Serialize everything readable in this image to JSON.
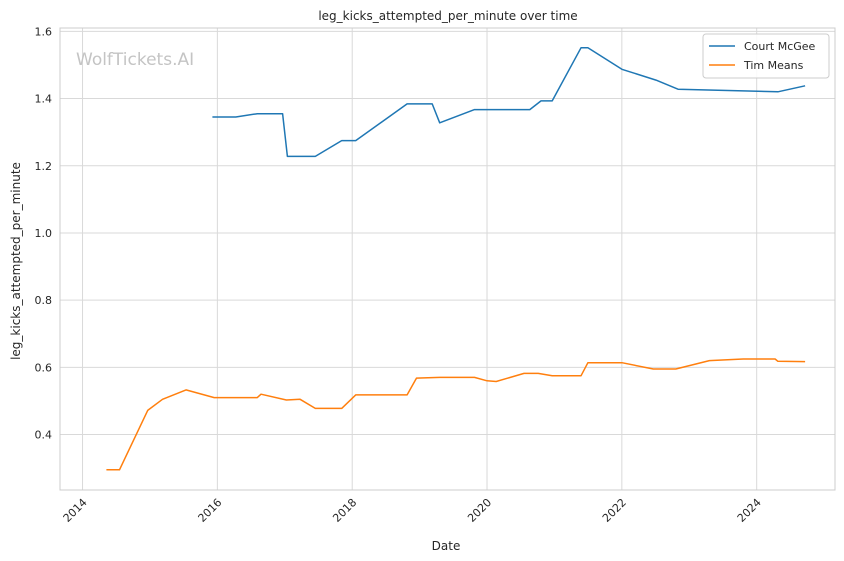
{
  "chart_data": {
    "type": "line",
    "title": "leg_kicks_attempted_per_minute over time",
    "xlabel": "Date",
    "ylabel": "leg_kicks_attempted_per_minute",
    "watermark": "WolfTickets.AI",
    "xlim": [
      "2013-09-01",
      "2025-03-01"
    ],
    "ylim": [
      0.235,
      1.61
    ],
    "x_ticks": [
      "2014",
      "2016",
      "2018",
      "2020",
      "2022",
      "2024"
    ],
    "y_ticks": [
      "0.4",
      "0.6",
      "0.8",
      "1.0",
      "1.2",
      "1.4",
      "1.6"
    ],
    "grid": true,
    "legend_position": "top-right",
    "series": [
      {
        "name": "Court McGee",
        "color": "#1f77b4",
        "points": [
          [
            "2015-12-05",
            1.345
          ],
          [
            "2016-04-10",
            1.345
          ],
          [
            "2016-08-05",
            1.355
          ],
          [
            "2016-12-20",
            1.355
          ],
          [
            "2017-01-15",
            1.228
          ],
          [
            "2017-06-15",
            1.228
          ],
          [
            "2017-11-05",
            1.275
          ],
          [
            "2018-01-20",
            1.275
          ],
          [
            "2018-10-25",
            1.384
          ],
          [
            "2019-03-10",
            1.384
          ],
          [
            "2019-04-20",
            1.328
          ],
          [
            "2019-10-25",
            1.367
          ],
          [
            "2020-08-20",
            1.367
          ],
          [
            "2020-10-20",
            1.393
          ],
          [
            "2020-12-20",
            1.393
          ],
          [
            "2021-05-25",
            1.551
          ],
          [
            "2021-07-01",
            1.551
          ],
          [
            "2022-01-01",
            1.487
          ],
          [
            "2022-07-05",
            1.455
          ],
          [
            "2022-11-01",
            1.428
          ],
          [
            "2024-04-25",
            1.42
          ],
          [
            "2024-09-20",
            1.438
          ]
        ]
      },
      {
        "name": "Tim Means",
        "color": "#ff7f0e",
        "points": [
          [
            "2014-05-10",
            0.295
          ],
          [
            "2014-07-20",
            0.295
          ],
          [
            "2014-12-20",
            0.472
          ],
          [
            "2015-03-10",
            0.505
          ],
          [
            "2015-07-15",
            0.533
          ],
          [
            "2015-12-15",
            0.51
          ],
          [
            "2016-08-05",
            0.51
          ],
          [
            "2016-08-25",
            0.52
          ],
          [
            "2017-01-10",
            0.503
          ],
          [
            "2017-03-25",
            0.505
          ],
          [
            "2017-06-15",
            0.478
          ],
          [
            "2017-11-05",
            0.478
          ],
          [
            "2018-01-20",
            0.518
          ],
          [
            "2018-10-25",
            0.518
          ],
          [
            "2018-12-15",
            0.568
          ],
          [
            "2019-04-20",
            0.57
          ],
          [
            "2019-10-25",
            0.57
          ],
          [
            "2020-01-01",
            0.56
          ],
          [
            "2020-02-20",
            0.558
          ],
          [
            "2020-07-20",
            0.582
          ],
          [
            "2020-10-05",
            0.582
          ],
          [
            "2020-12-20",
            0.575
          ],
          [
            "2021-05-25",
            0.575
          ],
          [
            "2021-07-01",
            0.614
          ],
          [
            "2022-01-01",
            0.614
          ],
          [
            "2022-06-20",
            0.595
          ],
          [
            "2022-10-20",
            0.595
          ],
          [
            "2023-04-20",
            0.62
          ],
          [
            "2023-10-20",
            0.625
          ],
          [
            "2024-04-10",
            0.625
          ],
          [
            "2024-04-25",
            0.618
          ],
          [
            "2024-09-20",
            0.617
          ]
        ]
      }
    ]
  }
}
